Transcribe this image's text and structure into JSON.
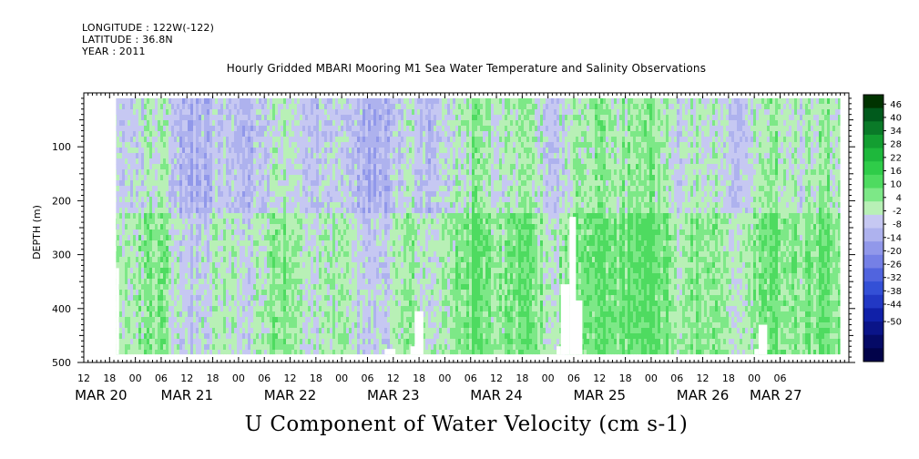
{
  "header": {
    "longitude": "LONGITUDE : 122W(-122)",
    "latitude": "LATITUDE : 36.8N",
    "year": "YEAR : 2011"
  },
  "chart_data": {
    "type": "heatmap",
    "title": "Hourly Gridded MBARI Mooring M1 Sea Water Temperature and Salinity Observations",
    "xlabel": "U Component of Water Velocity (cm s-1)",
    "ylabel": "DEPTH (m)",
    "x_axis": {
      "unit": "hours since MAR 20 12:00",
      "range": [
        0,
        178
      ],
      "hour_tick_labels": [
        "12",
        "18",
        "00",
        "06",
        "12",
        "18",
        "00",
        "06",
        "12",
        "18",
        "00",
        "06",
        "12",
        "18",
        "00",
        "06",
        "12",
        "18",
        "00",
        "06",
        "12",
        "18",
        "00",
        "06",
        "12",
        "18",
        "00",
        "06"
      ],
      "hour_tick_hours": [
        0,
        6,
        12,
        18,
        24,
        30,
        36,
        42,
        48,
        54,
        60,
        66,
        72,
        78,
        84,
        90,
        96,
        102,
        108,
        114,
        120,
        126,
        132,
        138,
        144,
        150,
        156,
        162
      ],
      "date_labels": [
        {
          "label": "MAR 20",
          "hour": 4
        },
        {
          "label": "MAR 21",
          "hour": 24
        },
        {
          "label": "MAR 22",
          "hour": 48
        },
        {
          "label": "MAR 23",
          "hour": 72
        },
        {
          "label": "MAR 24",
          "hour": 96
        },
        {
          "label": "MAR 25",
          "hour": 120
        },
        {
          "label": "MAR 26",
          "hour": 144
        },
        {
          "label": "MAR 27",
          "hour": 161
        }
      ]
    },
    "y_axis": {
      "range": [
        0,
        500
      ],
      "inverted": true,
      "ticks": [
        100,
        200,
        300,
        400,
        500
      ],
      "tick_labels": [
        "100",
        "200",
        "300",
        "400",
        "500"
      ]
    },
    "data_extent": {
      "x": [
        7.5,
        176
      ],
      "y": [
        10,
        485
      ]
    },
    "colorbar": {
      "labels": [
        "46",
        "40",
        "34",
        "28",
        "22",
        "16",
        "10",
        "4",
        "-2",
        "-8",
        "-14",
        "-20",
        "-26",
        "-32",
        "-38",
        "-44",
        "-50"
      ],
      "colors": [
        "#003300",
        "#005a1c",
        "#0a7a28",
        "#139e31",
        "#1eb83c",
        "#2fcc49",
        "#4edb60",
        "#7de887",
        "#b8f0b6",
        "#c6c8f2",
        "#aeb2ee",
        "#9198ea",
        "#7580e6",
        "#5164de",
        "#3450d6",
        "#2238c4",
        "#1020a8",
        "#0a1488",
        "#050a66",
        "#02034a"
      ]
    },
    "gaps": [
      {
        "x": [
          7.5,
          8.2
        ],
        "y": [
          325,
          485
        ]
      },
      {
        "x": [
          70,
          72.5
        ],
        "y": [
          475,
          485
        ]
      },
      {
        "x": [
          77,
          79
        ],
        "y": [
          405,
          485
        ]
      },
      {
        "x": [
          76,
          77.5
        ],
        "y": [
          470,
          485
        ]
      },
      {
        "x": [
          110,
          111
        ],
        "y": [
          470,
          485
        ]
      },
      {
        "x": [
          111,
          113
        ],
        "y": [
          355,
          485
        ]
      },
      {
        "x": [
          113,
          114.5
        ],
        "y": [
          230,
          485
        ]
      },
      {
        "x": [
          114,
          116
        ],
        "y": [
          385,
          485
        ]
      },
      {
        "x": [
          157,
          159
        ],
        "y": [
          430,
          485
        ]
      },
      {
        "x": [
          156,
          157
        ],
        "y": [
          475,
          485
        ]
      }
    ]
  }
}
